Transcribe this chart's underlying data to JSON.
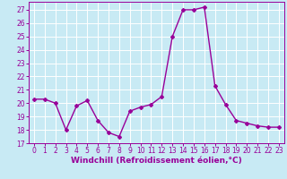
{
  "x": [
    0,
    1,
    2,
    3,
    4,
    5,
    6,
    7,
    8,
    9,
    10,
    11,
    12,
    13,
    14,
    15,
    16,
    17,
    18,
    19,
    20,
    21,
    22,
    23
  ],
  "y": [
    20.3,
    20.3,
    20.0,
    18.0,
    19.8,
    20.2,
    18.7,
    17.8,
    17.5,
    19.4,
    19.7,
    19.9,
    20.5,
    25.0,
    27.0,
    27.0,
    27.2,
    21.3,
    19.9,
    18.7,
    18.5,
    18.3,
    18.2,
    18.2
  ],
  "line_color": "#990099",
  "marker": "D",
  "marker_size": 2.0,
  "linewidth": 1.0,
  "xlim": [
    -0.5,
    23.5
  ],
  "ylim": [
    17,
    27.6
  ],
  "yticks": [
    17,
    18,
    19,
    20,
    21,
    22,
    23,
    24,
    25,
    26,
    27
  ],
  "xticks": [
    0,
    1,
    2,
    3,
    4,
    5,
    6,
    7,
    8,
    9,
    10,
    11,
    12,
    13,
    14,
    15,
    16,
    17,
    18,
    19,
    20,
    21,
    22,
    23
  ],
  "xlabel": "Windchill (Refroidissement éolien,°C)",
  "background_color": "#c8eaf4",
  "grid_color": "#aaccdd",
  "tick_color": "#990099",
  "label_color": "#990099",
  "tick_fontsize": 5.5,
  "xlabel_fontsize": 6.5
}
